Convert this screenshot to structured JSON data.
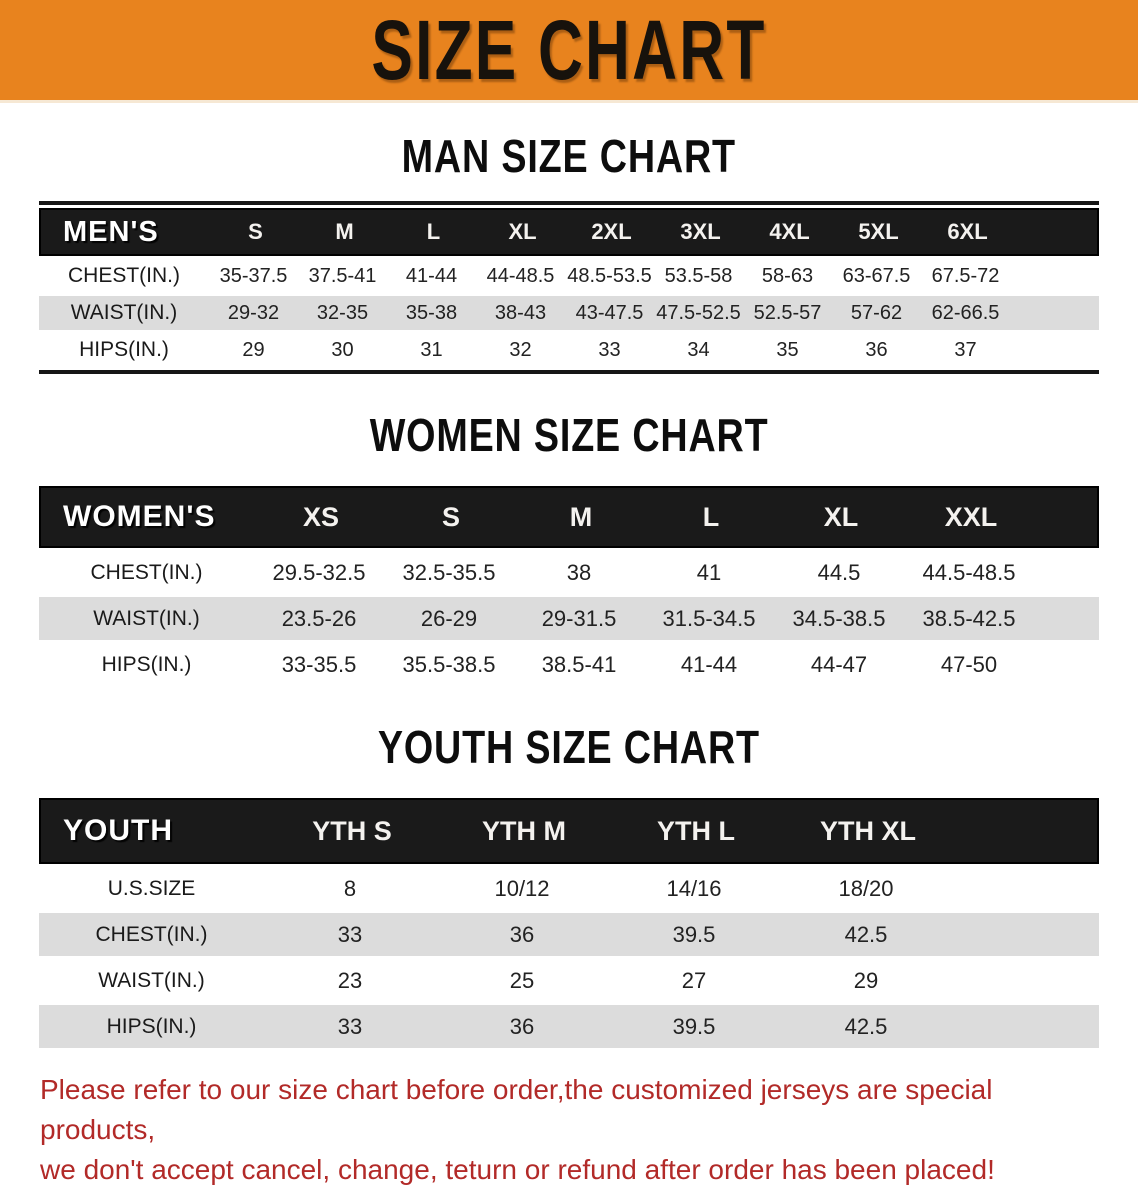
{
  "banner": {
    "title": "SIZE CHART",
    "bg_color": "#e8831e",
    "text_color": "#17120c"
  },
  "sections": [
    {
      "heading": "MAN SIZE CHART",
      "table": {
        "label": "MEN'S",
        "columns": [
          "S",
          "M",
          "L",
          "XL",
          "2XL",
          "3XL",
          "4XL",
          "5XL",
          "6XL"
        ],
        "rows": [
          {
            "label": "CHEST(IN.)",
            "values": [
              "35-37.5",
              "37.5-41",
              "41-44",
              "44-48.5",
              "48.5-53.5",
              "53.5-58",
              "58-63",
              "63-67.5",
              "67.5-72"
            ]
          },
          {
            "label": "WAIST(IN.)",
            "values": [
              "29-32",
              "32-35",
              "35-38",
              "38-43",
              "43-47.5",
              "47.5-52.5",
              "52.5-57",
              "57-62",
              "62-66.5"
            ]
          },
          {
            "label": "HIPS(IN.)",
            "values": [
              "29",
              "30",
              "31",
              "32",
              "33",
              "34",
              "35",
              "36",
              "37"
            ]
          }
        ]
      }
    },
    {
      "heading": "WOMEN SIZE CHART",
      "table": {
        "label": "WOMEN'S",
        "columns": [
          "XS",
          "S",
          "M",
          "L",
          "XL",
          "XXL"
        ],
        "rows": [
          {
            "label": "CHEST(IN.)",
            "values": [
              "29.5-32.5",
              "32.5-35.5",
              "38",
              "41",
              "44.5",
              "44.5-48.5"
            ]
          },
          {
            "label": "WAIST(IN.)",
            "values": [
              "23.5-26",
              "26-29",
              "29-31.5",
              "31.5-34.5",
              "34.5-38.5",
              "38.5-42.5"
            ]
          },
          {
            "label": "HIPS(IN.)",
            "values": [
              "33-35.5",
              "35.5-38.5",
              "38.5-41",
              "41-44",
              "44-47",
              "47-50"
            ]
          }
        ]
      }
    },
    {
      "heading": "YOUTH SIZE CHART",
      "table": {
        "label": "YOUTH",
        "columns": [
          "YTH S",
          "YTH M",
          "YTH L",
          "YTH XL"
        ],
        "rows": [
          {
            "label": "U.S.SIZE",
            "values": [
              "8",
              "10/12",
              "14/16",
              "18/20"
            ]
          },
          {
            "label": "CHEST(IN.)",
            "values": [
              "33",
              "36",
              "39.5",
              "42.5"
            ]
          },
          {
            "label": "WAIST(IN.)",
            "values": [
              "23",
              "25",
              "27",
              "29"
            ]
          },
          {
            "label": "HIPS(IN.)",
            "values": [
              "33",
              "36",
              "39.5",
              "42.5"
            ]
          }
        ]
      }
    }
  ],
  "footer": {
    "line1": "Please refer to our size chart before order,the customized jerseys are special products,",
    "line2": "we don't accept cancel, change, teturn or refund after order has been placed!",
    "text_color": "#b22a28"
  },
  "colors": {
    "banner_orange": "#e8831e",
    "header_bar_black": "#1a1a1a",
    "stripe_gray": "#dcdcdc",
    "notice_red": "#b22a28"
  }
}
